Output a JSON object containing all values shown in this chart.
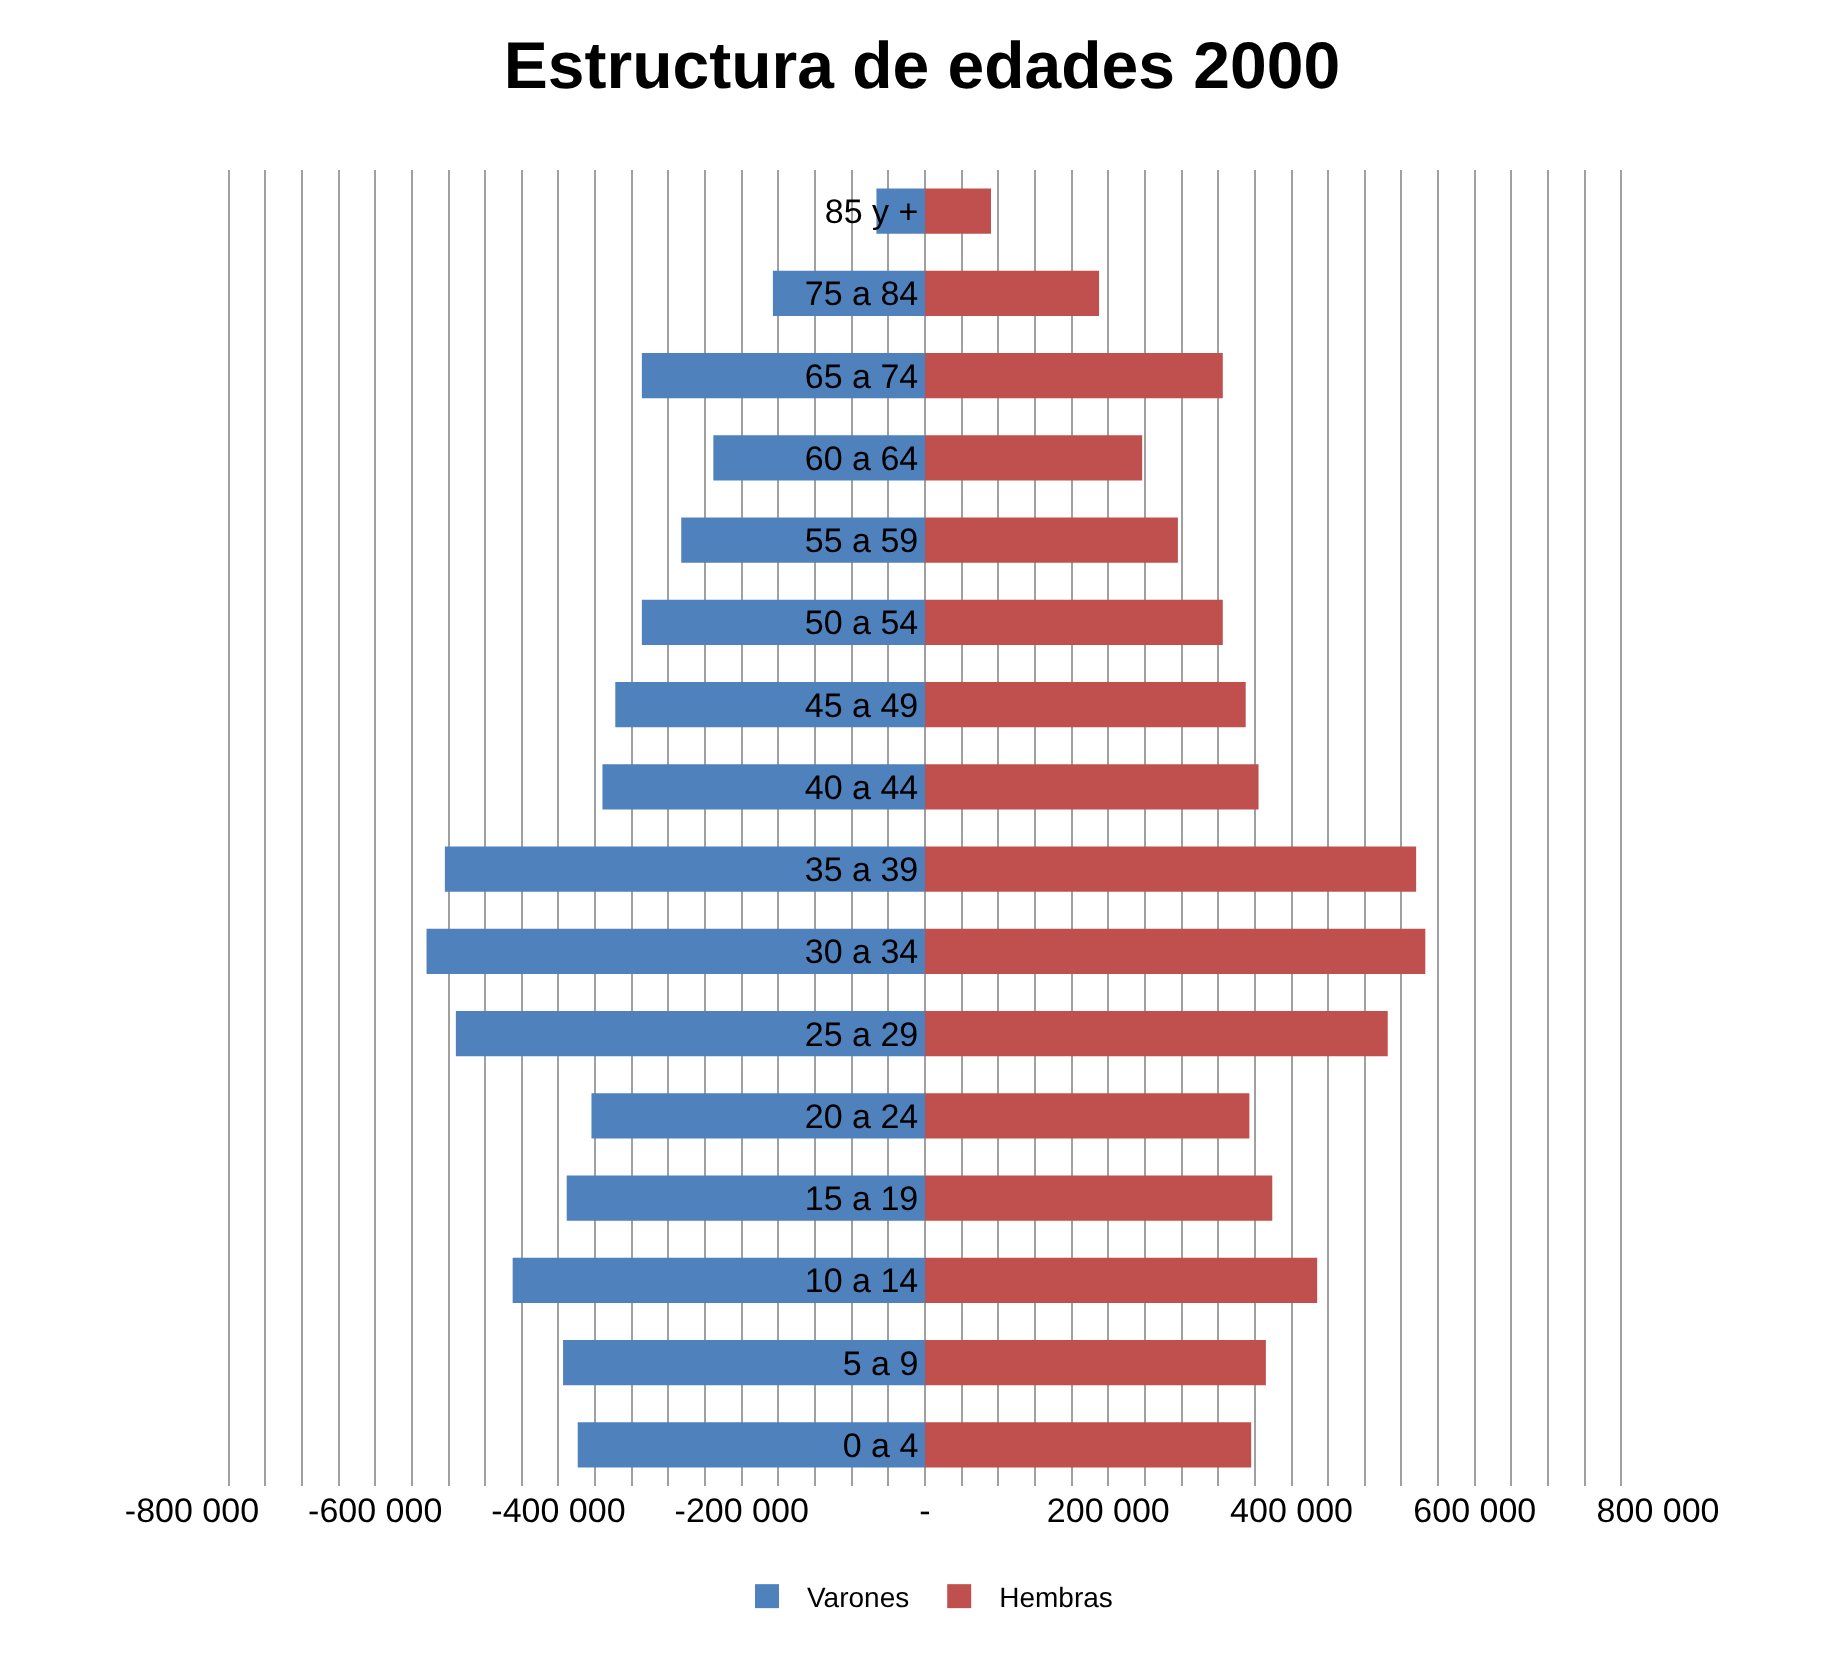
{
  "chart_data": {
    "type": "bar",
    "orientation": "horizontal",
    "title": "Estructura de edades 2000",
    "categories": [
      "85 y +",
      "75 a 84",
      "65 a 74",
      "60 a 64",
      "55 a 59",
      "50 a 54",
      "45 a 49",
      "40 a 44",
      "35 a 39",
      "30 a 34",
      "25 a 29",
      "20 a 24",
      "15 a 19",
      "10 a 14",
      "5 a 9",
      "0 a 4"
    ],
    "series": [
      {
        "name": "Varones",
        "color": "#4f81bd",
        "values": [
          -53000,
          -166000,
          -309000,
          -231000,
          -266000,
          -309000,
          -338000,
          -352000,
          -524000,
          -544000,
          -512000,
          -364000,
          -391000,
          -450000,
          -395000,
          -379000
        ]
      },
      {
        "name": "Hembras",
        "color": "#c0504d",
        "values": [
          72000,
          190000,
          325000,
          237000,
          276000,
          325000,
          350000,
          364000,
          536000,
          546000,
          505000,
          354000,
          379000,
          428000,
          372000,
          356000
        ]
      }
    ],
    "xlim": [
      -800000,
      800000
    ],
    "xticks": [
      {
        "value": -800000,
        "label": "-800 000"
      },
      {
        "value": -760000,
        "label": null
      },
      {
        "value": -720000,
        "label": null
      },
      {
        "value": -680000,
        "label": null
      },
      {
        "value": -640000,
        "label": null
      },
      {
        "value": -600000,
        "label": "-600 000"
      },
      {
        "value": -560000,
        "label": null
      },
      {
        "value": -520000,
        "label": null
      },
      {
        "value": -480000,
        "label": null
      },
      {
        "value": -440000,
        "label": null
      },
      {
        "value": -400000,
        "label": "-400 000"
      },
      {
        "value": -360000,
        "label": null
      },
      {
        "value": -320000,
        "label": null
      },
      {
        "value": -280000,
        "label": null
      },
      {
        "value": -240000,
        "label": null
      },
      {
        "value": -200000,
        "label": "-200 000"
      },
      {
        "value": -160000,
        "label": null
      },
      {
        "value": -120000,
        "label": null
      },
      {
        "value": -80000,
        "label": null
      },
      {
        "value": -40000,
        "label": null
      },
      {
        "value": 0,
        "label": "-"
      },
      {
        "value": 40000,
        "label": null
      },
      {
        "value": 80000,
        "label": null
      },
      {
        "value": 120000,
        "label": null
      },
      {
        "value": 160000,
        "label": null
      },
      {
        "value": 200000,
        "label": "200 000"
      },
      {
        "value": 240000,
        "label": null
      },
      {
        "value": 280000,
        "label": null
      },
      {
        "value": 320000,
        "label": null
      },
      {
        "value": 360000,
        "label": null
      },
      {
        "value": 400000,
        "label": "400 000"
      },
      {
        "value": 440000,
        "label": null
      },
      {
        "value": 480000,
        "label": null
      },
      {
        "value": 520000,
        "label": null
      },
      {
        "value": 560000,
        "label": null
      },
      {
        "value": 600000,
        "label": "600 000"
      },
      {
        "value": 640000,
        "label": null
      },
      {
        "value": 680000,
        "label": null
      },
      {
        "value": 720000,
        "label": null
      },
      {
        "value": 760000,
        "label": null
      },
      {
        "value": 800000,
        "label": "800 000"
      }
    ],
    "grid": "x",
    "legend": "bottom",
    "stacked": true
  }
}
